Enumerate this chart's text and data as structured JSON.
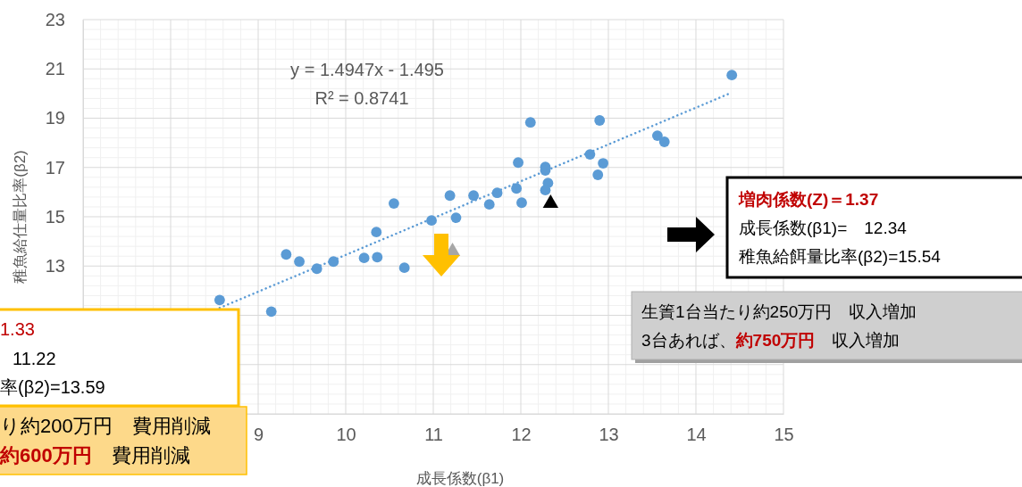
{
  "chart_data": {
    "type": "scatter",
    "xlabel": "成長係数(β1)",
    "ylabel": "稚魚給仕量比率(β2)",
    "xlim": [
      7,
      15
    ],
    "xticks": [
      {
        "value": 7,
        "label": null
      },
      {
        "value": 8,
        "label": null
      },
      9,
      10,
      11,
      12,
      13,
      14,
      15
    ],
    "ylim": [
      7,
      23
    ],
    "yticks": [
      {
        "value": 7,
        "label": null
      },
      {
        "value": 9,
        "label": null
      },
      {
        "value": 11,
        "label": null
      },
      13,
      15,
      17,
      19,
      21,
      23
    ],
    "grid": true,
    "series": [
      {
        "marker": "circle",
        "color": "#5b9bd5",
        "x": [
          8.56,
          9.15,
          9.32,
          9.47,
          9.67,
          9.86,
          10.21,
          10.36,
          10.35,
          10.55,
          10.67,
          10.98,
          11.19,
          11.26,
          11.46,
          11.64,
          11.73,
          14.41,
          12.11,
          12.9,
          13.56,
          13.64,
          12.79,
          12.94,
          12.88,
          11.97,
          12.28,
          12.28,
          12.31,
          12.28,
          11.95,
          12.01
        ],
        "values": [
          11.62,
          11.15,
          13.47,
          13.18,
          12.89,
          13.18,
          13.33,
          13.36,
          14.38,
          15.54,
          12.93,
          14.85,
          15.86,
          14.96,
          15.86,
          15.5,
          15.97,
          20.75,
          18.83,
          18.91,
          18.29,
          18.04,
          17.53,
          17.17,
          16.7,
          17.2,
          17.02,
          16.88,
          16.37,
          16.08,
          16.15,
          15.57
        ]
      },
      {
        "type": "line",
        "marker": "none",
        "line_style": "dotted",
        "color": "#5b9bd5",
        "x": [
          8.56,
          14.41
        ],
        "values": [
          11.3,
          20.04
        ]
      },
      {
        "marker": "triangle",
        "color": "#a6a6a6",
        "x": [
          11.22
        ],
        "values": [
          13.59
        ]
      },
      {
        "marker": "triangle",
        "color": "#000000",
        "x": [
          12.34
        ],
        "values": [
          15.54
        ]
      }
    ],
    "annotations": [
      "y = 1.4947x - 1.495",
      "R² = 0.8741",
      "増肉係数(Z)＝1.37",
      "成長係数(β1)=　12.34",
      "稚魚給餌量比率(β2)=15.54",
      "生簀1台当たり約250万円　収入増加",
      "3台あれば、",
      "約750万円",
      "　収入増加",
      "1.33",
      "11.22",
      "率(β2)=13.59",
      "り約200万円　費用削減",
      "約600万円",
      "　費用削減"
    ]
  }
}
